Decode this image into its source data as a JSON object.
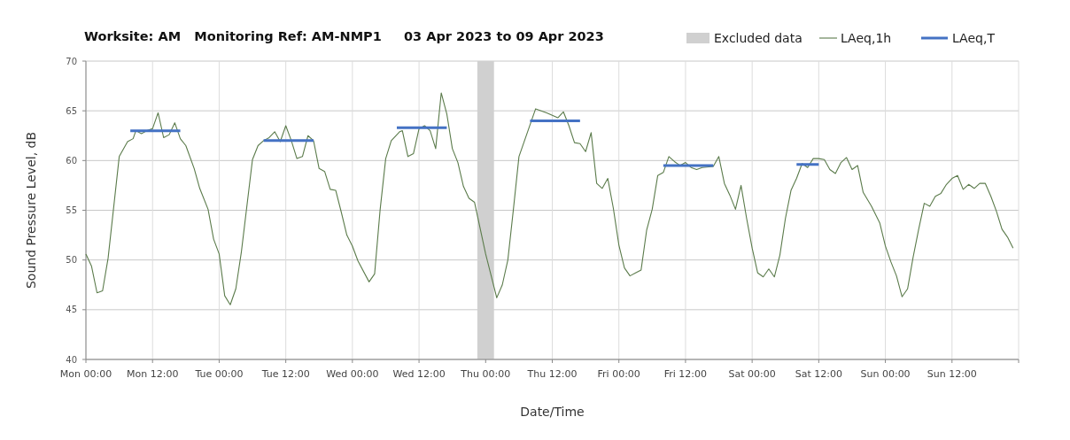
{
  "chart_data": {
    "type": "line",
    "title": "Worksite: AM   Monitoring Ref: AM-NMP1     03 Apr 2023 to 09 Apr 2023",
    "xlabel": "Date/Time",
    "ylabel": "Sound Pressure Level, dB",
    "xlim": [
      "2023-04-03T00:00",
      "2023-04-10T00:00"
    ],
    "ylim": [
      40,
      70
    ],
    "yticks": [
      40,
      45,
      50,
      55,
      60,
      65,
      70
    ],
    "xticks": [
      {
        "value": "2023-04-03T00:00",
        "label": "Mon 00:00"
      },
      {
        "value": "2023-04-03T12:00",
        "label": "Mon 12:00"
      },
      {
        "value": "2023-04-04T00:00",
        "label": "Tue 00:00"
      },
      {
        "value": "2023-04-04T12:00",
        "label": "Tue 12:00"
      },
      {
        "value": "2023-04-05T00:00",
        "label": "Wed 00:00"
      },
      {
        "value": "2023-04-05T12:00",
        "label": "Wed 12:00"
      },
      {
        "value": "2023-04-06T00:00",
        "label": "Thu 00:00"
      },
      {
        "value": "2023-04-06T12:00",
        "label": "Thu 12:00"
      },
      {
        "value": "2023-04-07T00:00",
        "label": "Fri 00:00"
      },
      {
        "value": "2023-04-07T12:00",
        "label": "Fri 12:00"
      },
      {
        "value": "2023-04-08T00:00",
        "label": "Sat 00:00"
      },
      {
        "value": "2023-04-08T12:00",
        "label": "Sat 12:00"
      },
      {
        "value": "2023-04-09T00:00",
        "label": "Sun 00:00"
      },
      {
        "value": "2023-04-09T12:00",
        "label": "Sun 12:00"
      },
      {
        "value": "2023-04-10T00:00",
        "label": null
      }
    ],
    "grid": true,
    "legend": "top right",
    "bands": [
      {
        "axis": "x",
        "from": "2023-04-05T22:30",
        "to": "2023-04-06T01:30",
        "label": "Excluded data",
        "color": "#d0d0d0"
      }
    ],
    "series": [
      {
        "name": "LAeq,1h",
        "color": "#5b7b4b",
        "x": [
          "2023-04-03T00:00",
          "2023-04-03T01:00",
          "2023-04-03T02:00",
          "2023-04-03T03:00",
          "2023-04-03T04:00",
          "2023-04-03T06:00",
          "2023-04-03T07:30",
          "2023-04-03T08:30",
          "2023-04-03T09:00",
          "2023-04-03T10:00",
          "2023-04-03T11:00",
          "2023-04-03T12:00",
          "2023-04-03T13:00",
          "2023-04-03T14:00",
          "2023-04-03T15:00",
          "2023-04-03T16:00",
          "2023-04-03T17:00",
          "2023-04-03T18:00",
          "2023-04-03T19:30",
          "2023-04-03T20:30",
          "2023-04-03T22:00",
          "2023-04-03T23:00",
          "2023-04-04T00:00",
          "2023-04-04T01:00",
          "2023-04-04T02:00",
          "2023-04-04T03:00",
          "2023-04-04T04:00",
          "2023-04-04T06:00",
          "2023-04-04T07:00",
          "2023-04-04T08:00",
          "2023-04-04T09:00",
          "2023-04-04T10:00",
          "2023-04-04T11:00",
          "2023-04-04T12:00",
          "2023-04-04T13:00",
          "2023-04-04T14:00",
          "2023-04-04T15:00",
          "2023-04-04T16:00",
          "2023-04-04T17:00",
          "2023-04-04T18:00",
          "2023-04-04T19:00",
          "2023-04-04T20:00",
          "2023-04-04T21:00",
          "2023-04-04T22:00",
          "2023-04-04T23:00",
          "2023-04-05T00:00",
          "2023-04-05T01:00",
          "2023-04-05T03:00",
          "2023-04-05T04:00",
          "2023-04-05T05:00",
          "2023-04-05T06:00",
          "2023-04-05T07:00",
          "2023-04-05T08:30",
          "2023-04-05T09:00",
          "2023-04-05T10:00",
          "2023-04-05T11:00",
          "2023-04-05T12:00",
          "2023-04-05T13:00",
          "2023-04-05T14:00",
          "2023-04-05T15:00",
          "2023-04-05T16:00",
          "2023-04-05T17:00",
          "2023-04-05T18:00",
          "2023-04-05T19:00",
          "2023-04-05T20:00",
          "2023-04-05T21:00",
          "2023-04-05T22:00",
          "2023-04-06T00:00",
          "2023-04-06T02:00",
          "2023-04-06T03:00",
          "2023-04-06T04:00",
          "2023-04-06T05:00",
          "2023-04-06T06:00",
          "2023-04-06T07:30",
          "2023-04-06T09:00",
          "2023-04-06T11:00",
          "2023-04-06T13:00",
          "2023-04-06T14:00",
          "2023-04-06T15:00",
          "2023-04-06T16:00",
          "2023-04-06T17:00",
          "2023-04-06T18:00",
          "2023-04-06T19:00",
          "2023-04-06T20:00",
          "2023-04-06T21:00",
          "2023-04-06T22:00",
          "2023-04-06T23:00",
          "2023-04-07T00:00",
          "2023-04-07T01:00",
          "2023-04-07T02:00",
          "2023-04-07T03:00",
          "2023-04-07T04:00",
          "2023-04-07T05:00",
          "2023-04-07T06:00",
          "2023-04-07T07:00",
          "2023-04-07T08:00",
          "2023-04-07T09:00",
          "2023-04-07T10:00",
          "2023-04-07T11:00",
          "2023-04-07T12:00",
          "2023-04-07T13:00",
          "2023-04-07T14:00",
          "2023-04-07T15:00",
          "2023-04-07T17:00",
          "2023-04-07T18:00",
          "2023-04-07T19:00",
          "2023-04-07T20:00",
          "2023-04-07T21:00",
          "2023-04-07T22:00",
          "2023-04-07T23:00",
          "2023-04-08T00:00",
          "2023-04-08T01:00",
          "2023-04-08T02:00",
          "2023-04-08T03:00",
          "2023-04-08T04:00",
          "2023-04-08T05:00",
          "2023-04-08T06:00",
          "2023-04-08T07:00",
          "2023-04-08T08:00",
          "2023-04-08T09:00",
          "2023-04-08T10:00",
          "2023-04-08T11:00",
          "2023-04-08T12:00",
          "2023-04-08T13:00",
          "2023-04-08T14:00",
          "2023-04-08T15:00",
          "2023-04-08T16:00",
          "2023-04-08T17:00",
          "2023-04-08T18:00",
          "2023-04-08T19:00",
          "2023-04-08T20:00",
          "2023-04-08T21:30",
          "2023-04-08T23:00",
          "2023-04-09T00:00",
          "2023-04-09T01:00",
          "2023-04-09T02:00",
          "2023-04-09T03:00",
          "2023-04-09T04:00",
          "2023-04-09T05:00",
          "2023-04-09T06:00",
          "2023-04-09T07:00",
          "2023-04-09T08:00",
          "2023-04-09T09:00",
          "2023-04-09T10:00",
          "2023-04-09T11:00",
          "2023-04-09T12:00",
          "2023-04-09T13:00",
          "2023-04-09T14:00",
          "2023-04-09T15:00",
          "2023-04-09T16:00",
          "2023-04-09T17:00",
          "2023-04-09T18:00",
          "2023-04-09T19:00",
          "2023-04-09T20:00",
          "2023-04-09T21:00",
          "2023-04-09T22:00",
          "2023-04-09T23:00"
        ],
        "values": [
          50.6,
          49.4,
          46.7,
          46.9,
          50.2,
          60.4,
          61.9,
          62.2,
          63.0,
          62.7,
          63.0,
          63.2,
          64.8,
          62.3,
          62.6,
          63.8,
          62.2,
          61.5,
          59.2,
          57.2,
          55.1,
          52.1,
          50.6,
          46.4,
          45.5,
          47.1,
          50.8,
          60.1,
          61.5,
          62.0,
          62.3,
          62.9,
          61.9,
          63.5,
          62.0,
          60.2,
          60.4,
          62.5,
          62.0,
          59.2,
          58.9,
          57.1,
          57.0,
          54.8,
          52.5,
          51.4,
          49.9,
          47.8,
          48.6,
          55.1,
          60.2,
          62.0,
          62.9,
          63.0,
          60.4,
          60.7,
          63.2,
          63.5,
          63.0,
          61.2,
          66.8,
          64.7,
          61.2,
          59.8,
          57.4,
          56.2,
          55.8,
          50.6,
          46.2,
          47.5,
          50.0,
          55.1,
          60.4,
          62.8,
          65.2,
          64.8,
          64.3,
          64.9,
          63.5,
          61.8,
          61.7,
          60.9,
          62.8,
          57.7,
          57.2,
          58.2,
          55.2,
          51.5,
          49.2,
          48.4,
          48.7,
          49.0,
          53.0,
          55.1,
          58.5,
          58.8,
          60.4,
          59.9,
          59.5,
          59.8,
          59.3,
          59.1,
          59.3,
          59.4,
          60.4,
          57.7,
          56.5,
          55.1,
          57.5,
          54.2,
          51.2,
          48.7,
          48.3,
          49.1,
          48.3,
          50.5,
          54.2,
          57.0,
          58.2,
          59.7,
          59.3,
          60.2,
          60.2,
          60.1,
          59.1,
          58.7,
          59.8,
          60.3,
          59.1,
          59.5,
          56.8,
          55.4,
          53.7,
          51.4,
          49.8,
          48.4,
          46.3,
          47.1,
          50.3,
          53.1,
          55.7,
          55.4,
          56.4,
          56.7,
          57.6,
          58.2,
          58.5,
          57.1,
          57.6,
          57.2,
          57.7,
          57.7,
          56.4,
          54.9,
          53.1,
          52.3,
          51.2
        ]
      },
      {
        "name": "LAeq,T",
        "color": "#4472c4",
        "x": [
          "2023-04-03T08:00",
          "2023-04-03T17:00",
          "2023-04-03T20:00",
          "2023-04-04T08:00",
          "2023-04-04T17:00",
          "2023-04-04T20:00",
          "2023-04-05T08:00",
          "2023-04-05T17:00",
          "2023-04-05T22:00",
          "2023-04-06T08:00",
          "2023-04-06T17:00",
          "2023-04-06T23:00",
          "2023-04-07T08:00",
          "2023-04-07T17:00",
          "2023-04-07T22:00",
          "2023-04-08T08:00",
          "2023-04-08T12:00"
        ],
        "values": [
          63.0,
          63.0,
          null,
          62.0,
          62.0,
          null,
          63.3,
          63.3,
          null,
          64.0,
          64.0,
          null,
          59.5,
          59.5,
          null,
          59.6,
          59.6
        ]
      }
    ]
  }
}
